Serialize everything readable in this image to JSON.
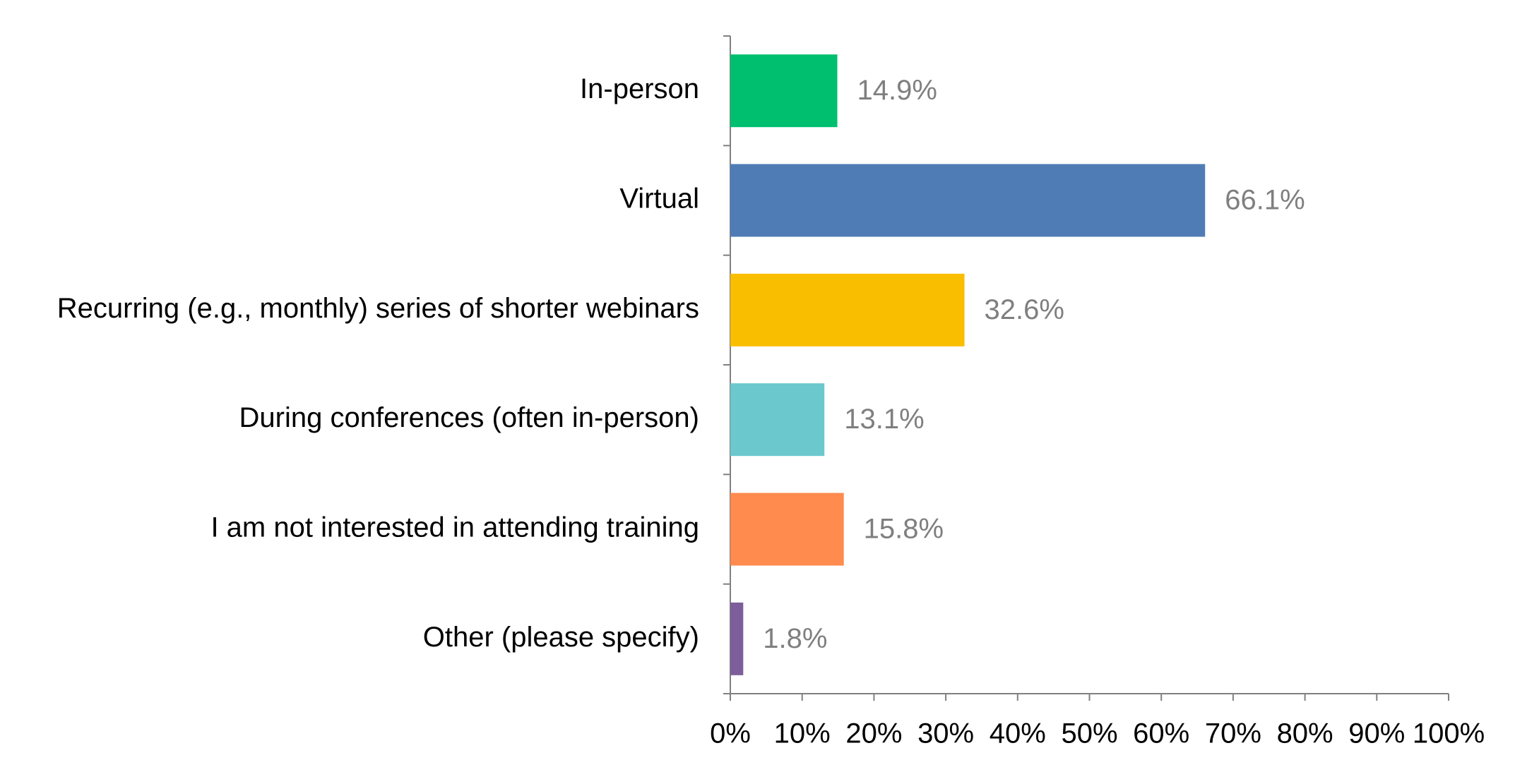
{
  "chart_data": {
    "type": "bar",
    "orientation": "horizontal",
    "categories": [
      "In-person",
      "Virtual",
      "Recurring (e.g., monthly) series of shorter webinars",
      "During conferences (often in-person)",
      "I am not interested in attending training",
      "Other (please specify)"
    ],
    "values": [
      14.9,
      66.1,
      32.6,
      13.1,
      15.8,
      1.8
    ],
    "value_labels": [
      "14.9%",
      "66.1%",
      "32.6%",
      "13.1%",
      "15.8%",
      "1.8%"
    ],
    "colors": [
      "#00bf6f",
      "#507cb6",
      "#f9be00",
      "#6bc8cd",
      "#ff8b4f",
      "#7d5e9a"
    ],
    "xlim": [
      0,
      100
    ],
    "xticks": [
      {
        "value": 0,
        "label": "0%"
      },
      {
        "value": 10,
        "label": "10%"
      },
      {
        "value": 20,
        "label": "20%"
      },
      {
        "value": 30,
        "label": "30%"
      },
      {
        "value": 40,
        "label": "40%"
      },
      {
        "value": 50,
        "label": "50%"
      },
      {
        "value": 60,
        "label": "60%"
      },
      {
        "value": 70,
        "label": "70%"
      },
      {
        "value": 80,
        "label": "80%"
      },
      {
        "value": 90,
        "label": "90%"
      },
      {
        "value": 100,
        "label": "100%"
      }
    ],
    "grid": false
  }
}
